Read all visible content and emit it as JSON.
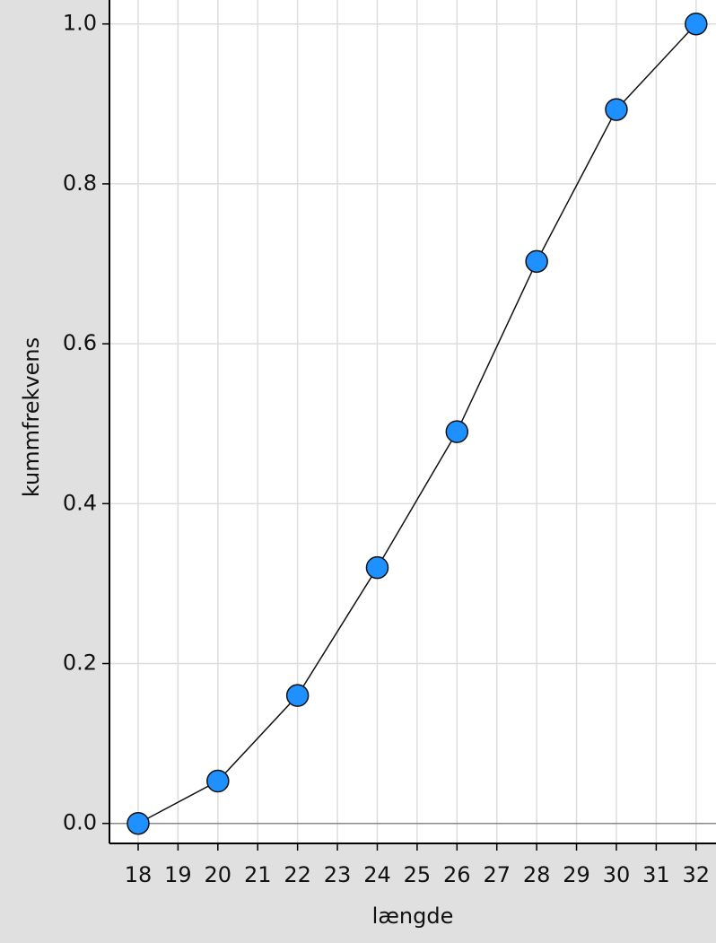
{
  "chart_data": {
    "type": "line",
    "x_label": "længde",
    "y_label": "kummfrekvens",
    "x": [
      18,
      20,
      22,
      24,
      26,
      28,
      30,
      32
    ],
    "series": [
      {
        "color": "#1e90ff",
        "values": [
          0,
          0.053,
          0.16,
          0.32,
          0.49,
          0.703,
          0.893,
          1.0
        ]
      }
    ],
    "xlim": [
      17.28,
      32.5
    ],
    "ylim": [
      -0.025,
      1.03
    ],
    "xticks": [
      18,
      19,
      20,
      21,
      22,
      23,
      24,
      25,
      26,
      27,
      28,
      29,
      30,
      31,
      32
    ],
    "yticks": [
      {
        "value": 0,
        "label": "0.0"
      },
      0.2,
      0.4,
      0.6,
      0.8,
      {
        "value": 1,
        "label": "1.0"
      }
    ],
    "grid": true
  }
}
